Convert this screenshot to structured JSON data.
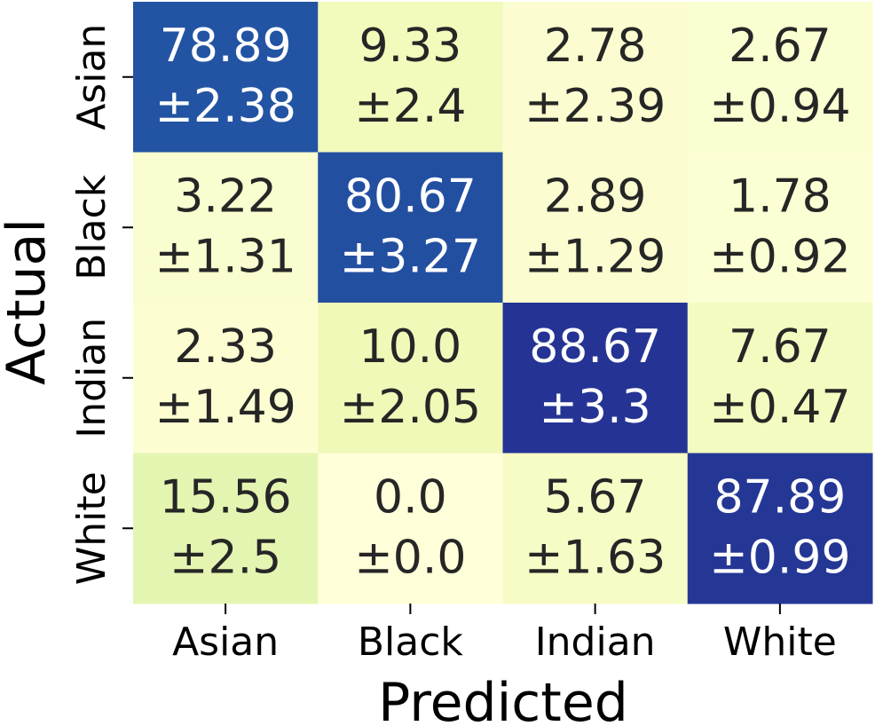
{
  "chart_data": {
    "type": "heatmap",
    "xlabel": "Predicted",
    "ylabel": "Actual",
    "x_categories": [
      "Asian",
      "Black",
      "Indian",
      "White"
    ],
    "y_categories": [
      "Asian",
      "Black",
      "Indian",
      "White"
    ],
    "values": [
      [
        78.89,
        9.33,
        2.78,
        2.67
      ],
      [
        3.22,
        80.67,
        2.89,
        1.78
      ],
      [
        2.33,
        10.0,
        88.67,
        7.67
      ],
      [
        15.56,
        0.0,
        5.67,
        87.89
      ]
    ],
    "cell_labels": [
      [
        [
          "78.89",
          "±2.38"
        ],
        [
          "9.33",
          "±2.4"
        ],
        [
          "2.78",
          "±2.39"
        ],
        [
          "2.67",
          "±0.94"
        ]
      ],
      [
        [
          "3.22",
          "±1.31"
        ],
        [
          "80.67",
          "±3.27"
        ],
        [
          "2.89",
          "±1.29"
        ],
        [
          "1.78",
          "±0.92"
        ]
      ],
      [
        [
          "2.33",
          "±1.49"
        ],
        [
          "10.0",
          "±2.05"
        ],
        [
          "88.67",
          "±3.3"
        ],
        [
          "7.67",
          "±0.47"
        ]
      ],
      [
        [
          "15.56",
          "±2.5"
        ],
        [
          "0.0",
          "±0.0"
        ],
        [
          "5.67",
          "±1.63"
        ],
        [
          "87.89",
          "±0.99"
        ]
      ]
    ],
    "colormap": "YlGnBu",
    "grid": false,
    "colors": {
      "low": "#ffffd9",
      "high": "#253494",
      "text_dark": "#262626",
      "text_light": "#ffffff"
    }
  }
}
